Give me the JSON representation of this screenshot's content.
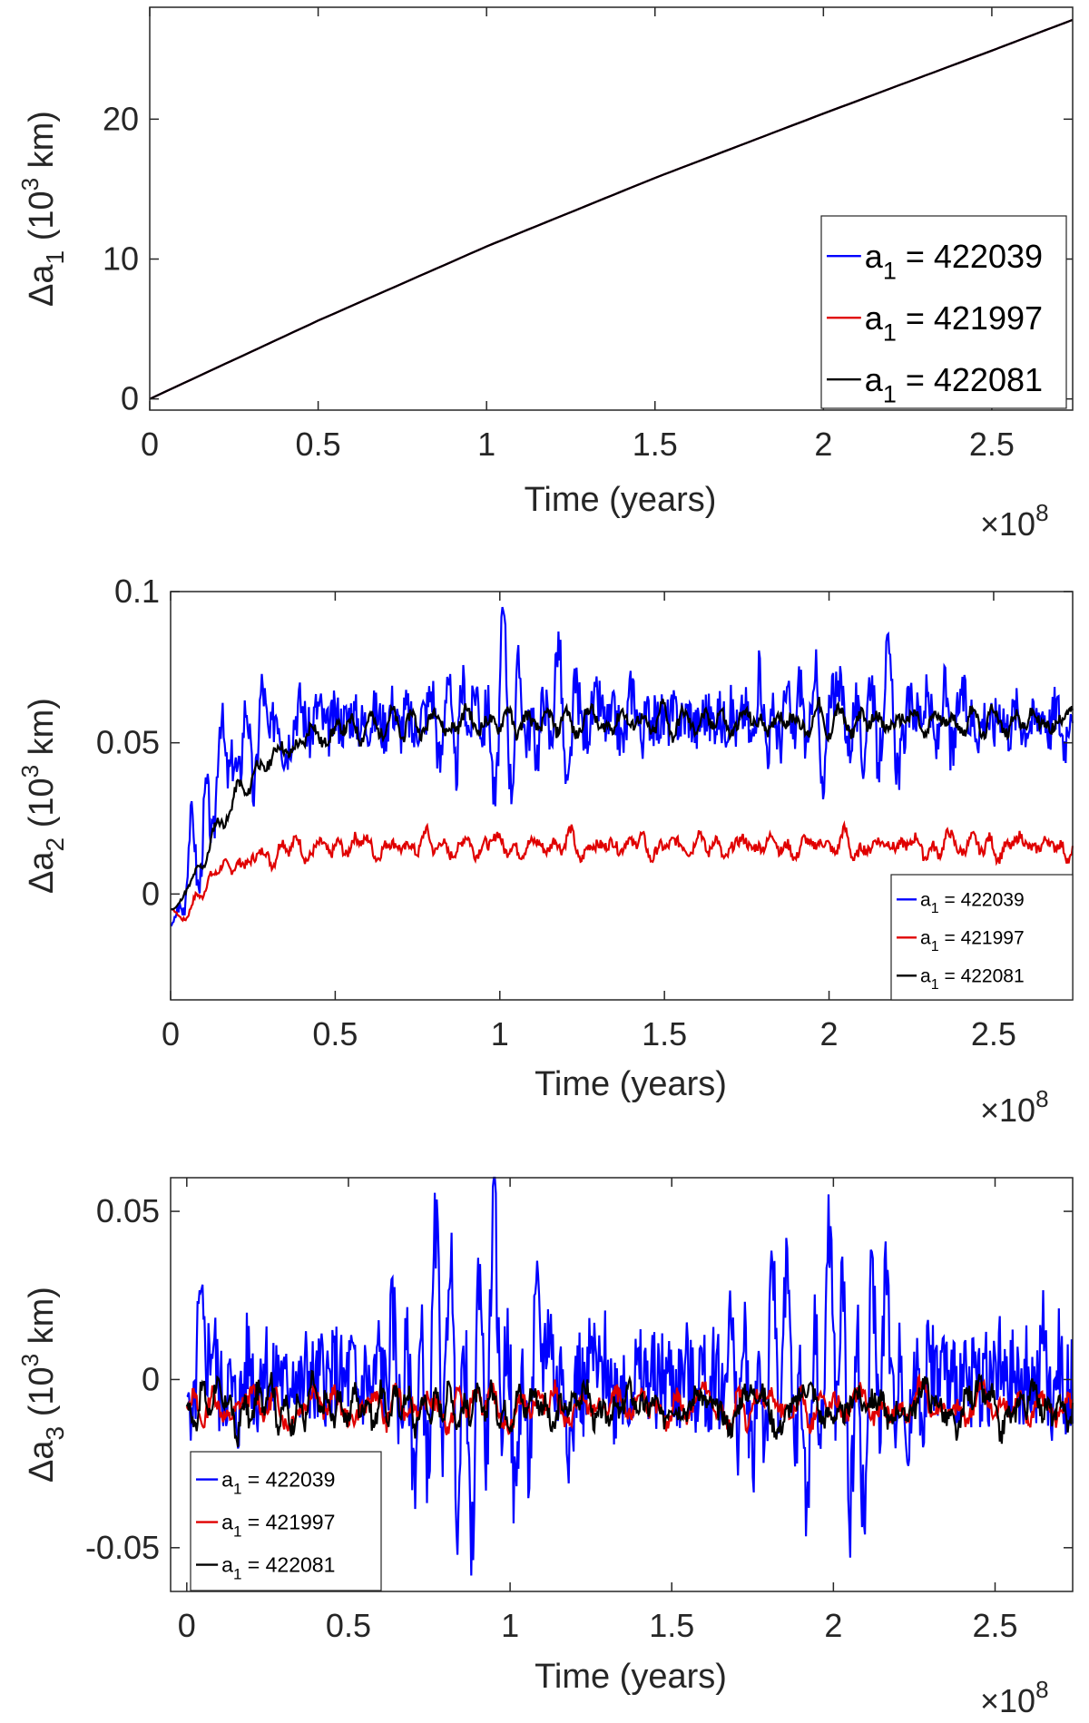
{
  "colors": {
    "series_blue": "#0000ff",
    "series_red": "#e00000",
    "series_black": "#000000",
    "axis": "#262626"
  },
  "chart_data": [
    {
      "type": "line",
      "ylabel_prefix": "Δa",
      "ylabel_sub": "1",
      "ylabel_suffix_a": " (10",
      "ylabel_sup": "3",
      "ylabel_suffix_b": " km)",
      "xlabel": "Time (years)",
      "x_multiplier_base": "×10",
      "x_multiplier_exp": "8",
      "xlim": [
        0,
        2.74
      ],
      "ylim": [
        -0.8,
        28
      ],
      "xticks": [
        "0",
        "0.5",
        "1",
        "1.5",
        "2",
        "2.5"
      ],
      "xtick_values": [
        0,
        0.5,
        1,
        1.5,
        2,
        2.5
      ],
      "yticks": [
        "0",
        "10",
        "20"
      ],
      "ytick_values": [
        0,
        10,
        20
      ],
      "legend": {
        "placement": "right-middle",
        "size": "large"
      },
      "series": [
        {
          "name": "a₁ = 422039",
          "name_prefix": "a",
          "name_sub": "1",
          "name_value": " = 422039",
          "color": "#0000ff",
          "model": "trend",
          "x": [
            0,
            0.5,
            1.0,
            1.5,
            2.0,
            2.5,
            2.74
          ],
          "y": [
            0,
            5.6,
            10.9,
            15.8,
            20.4,
            24.9,
            27.1
          ]
        },
        {
          "name": "a₁ = 421997",
          "name_prefix": "a",
          "name_sub": "1",
          "name_value": " = 421997",
          "color": "#e00000",
          "model": "trend",
          "x": [
            0,
            0.5,
            1.0,
            1.5,
            2.0,
            2.5,
            2.74
          ],
          "y": [
            0,
            5.6,
            10.9,
            15.8,
            20.4,
            24.9,
            27.1
          ]
        },
        {
          "name": "a₁ = 422081",
          "name_prefix": "a",
          "name_sub": "1",
          "name_value": " = 422081",
          "color": "#000000",
          "model": "trend",
          "x": [
            0,
            0.5,
            1.0,
            1.5,
            2.0,
            2.5,
            2.74
          ],
          "y": [
            0,
            5.6,
            10.9,
            15.8,
            20.4,
            24.9,
            27.1
          ]
        }
      ]
    },
    {
      "type": "line",
      "ylabel_prefix": "Δa",
      "ylabel_sub": "2",
      "ylabel_suffix_a": " (10",
      "ylabel_sup": "3",
      "ylabel_suffix_b": " km)",
      "xlabel": "Time (years)",
      "x_multiplier_base": "×10",
      "x_multiplier_exp": "8",
      "xlim": [
        0,
        2.74
      ],
      "ylim": [
        -0.035,
        0.1
      ],
      "xticks": [
        "0",
        "0.5",
        "1",
        "1.5",
        "2",
        "2.5"
      ],
      "xtick_values": [
        0,
        0.5,
        1,
        1.5,
        2,
        2.5
      ],
      "yticks": [
        "0",
        "0.05",
        "0.1"
      ],
      "ytick_values": [
        0,
        0.05,
        0.1
      ],
      "legend": {
        "placement": "bottom-right",
        "size": "small"
      },
      "series": [
        {
          "name": "a₁ = 422039",
          "name_prefix": "a",
          "name_sub": "1",
          "name_value": " = 422039",
          "color": "#0000ff",
          "model": "oscillating",
          "start": -0.01,
          "plateau": 0.058,
          "rise_time": 0.09,
          "amplitude": 0.03,
          "seed": 3
        },
        {
          "name": "a₁ = 421997",
          "name_prefix": "a",
          "name_sub": "1",
          "name_value": " = 421997",
          "color": "#e00000",
          "model": "oscillating",
          "start": -0.005,
          "plateau": 0.016,
          "rise_time": 0.12,
          "amplitude": 0.006,
          "seed": 7,
          "dip": -0.015
        },
        {
          "name": "a₁ = 422081",
          "name_prefix": "a",
          "name_sub": "1",
          "name_value": " = 422081",
          "color": "#000000",
          "model": "oscillating",
          "start": -0.005,
          "plateau": 0.057,
          "rise_time": 0.15,
          "amplitude": 0.007,
          "seed": 11
        }
      ]
    },
    {
      "type": "line",
      "ylabel_prefix": "Δa",
      "ylabel_sub": "3",
      "ylabel_suffix_a": " (10",
      "ylabel_sup": "3",
      "ylabel_suffix_b": " km)",
      "xlabel": "Time (years)",
      "x_multiplier_base": "×10",
      "x_multiplier_exp": "8",
      "xlim": [
        -0.05,
        2.74
      ],
      "ylim": [
        -0.063,
        0.06
      ],
      "xticks": [
        "0",
        "0.5",
        "1",
        "1.5",
        "2",
        "2.5"
      ],
      "xtick_values": [
        0,
        0.5,
        1,
        1.5,
        2,
        2.5
      ],
      "yticks": [
        "-0.05",
        "0",
        "0.05"
      ],
      "ytick_values": [
        -0.05,
        0,
        0.05
      ],
      "legend": {
        "placement": "bottom-left",
        "size": "small"
      },
      "series": [
        {
          "name": "a₁ = 422039",
          "name_prefix": "a",
          "name_sub": "1",
          "name_value": " = 422039",
          "color": "#0000ff",
          "model": "oscillating",
          "start": -0.005,
          "plateau": 0.0,
          "rise_time": 0.01,
          "amplitude": 0.05,
          "seed": 5
        },
        {
          "name": "a₁ = 421997",
          "name_prefix": "a",
          "name_sub": "1",
          "name_value": " = 421997",
          "color": "#e00000",
          "model": "oscillating",
          "start": -0.008,
          "plateau": -0.008,
          "rise_time": 0.01,
          "amplitude": 0.009,
          "seed": 13
        },
        {
          "name": "a₁ = 422081",
          "name_prefix": "a",
          "name_sub": "1",
          "name_value": " = 422081",
          "color": "#000000",
          "model": "oscillating",
          "start": -0.008,
          "plateau": -0.008,
          "rise_time": 0.01,
          "amplitude": 0.011,
          "seed": 17
        }
      ]
    }
  ]
}
